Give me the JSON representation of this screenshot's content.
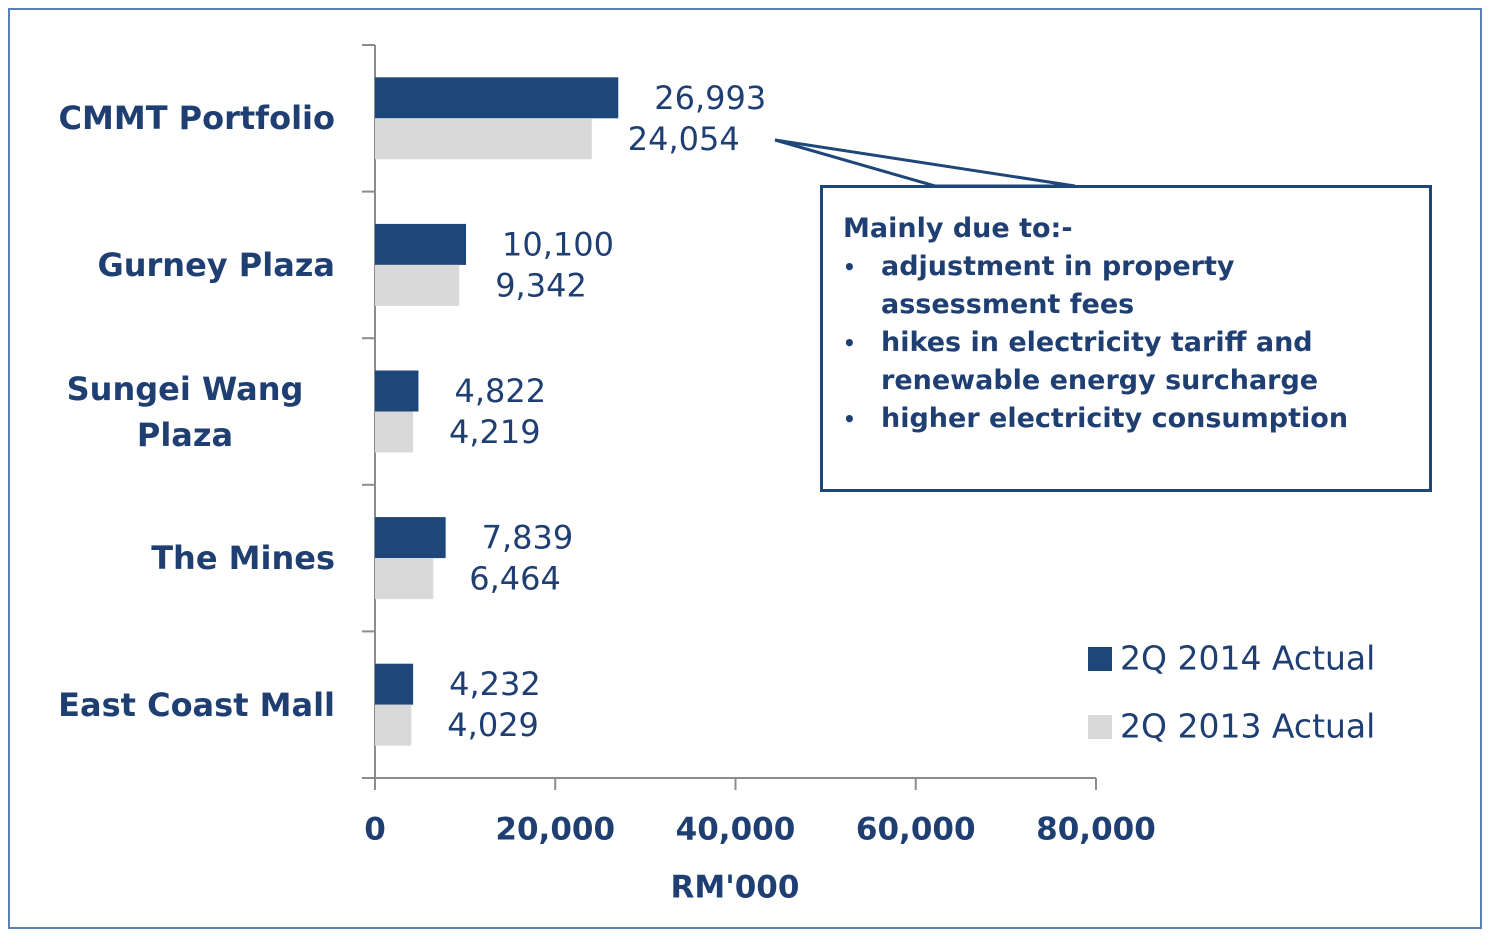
{
  "chart_data": {
    "type": "bar",
    "orientation": "horizontal",
    "categories": [
      "CMMT Portfolio",
      "Gurney Plaza",
      "Sungei Wang Plaza",
      "The Mines",
      "East Coast Mall"
    ],
    "series": [
      {
        "name": "2Q 2014 Actual",
        "color": "#1f4678",
        "values": [
          26993,
          10100,
          4822,
          7839,
          4232
        ],
        "value_labels": [
          "26,993",
          "10,100",
          "4,822",
          "7,839",
          "4,232"
        ]
      },
      {
        "name": "2Q 2013 Actual",
        "color": "#d9d9d9",
        "values": [
          24054,
          9342,
          4219,
          6464,
          4029
        ],
        "value_labels": [
          "24,054",
          "9,342",
          "4,219",
          "6,464",
          "4,029"
        ]
      }
    ],
    "xlim": [
      0,
      80000
    ],
    "xticks": [
      0,
      {
        "value": 20000,
        "label": "20,000"
      },
      {
        "value": 40000,
        "label": "40,000"
      },
      {
        "value": 60000,
        "label": "60,000"
      },
      {
        "value": 80000,
        "label": "80,000"
      }
    ],
    "xlabel": "RM'000",
    "legend": "lower right",
    "annotation": {
      "title": "Mainly due to:-",
      "items": [
        "adjustment in property assessment fees",
        "hikes in electricity tariff and renewable energy surcharge",
        "higher electricity consumption"
      ]
    }
  }
}
